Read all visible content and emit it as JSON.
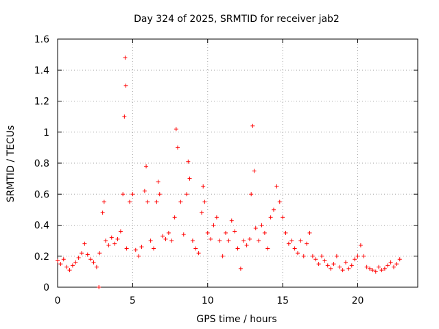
{
  "chart_data": {
    "type": "scatter",
    "title": "Day 324 of 2025, SRMTID for receiver jab2",
    "xlabel": "GPS time / hours",
    "ylabel": "SRMTID / TECUs",
    "xlim": [
      0,
      24
    ],
    "ylim": [
      0,
      1.6
    ],
    "xticks": [
      0,
      5,
      10,
      15,
      20
    ],
    "xtick_labels": [
      "0",
      "5",
      "10",
      "15",
      "20"
    ],
    "yticks": [
      0,
      0.2,
      0.4,
      0.6,
      0.8,
      1.0,
      1.2,
      1.4,
      1.6
    ],
    "ytick_labels": [
      "0",
      "0.2",
      "0.4",
      "0.6",
      "0.8",
      "1",
      "1.2",
      "1.4",
      "1.6"
    ],
    "grid": true,
    "marker": "+",
    "color": "#ff0000",
    "series": [
      {
        "name": "SRMTID",
        "x": [
          0.0,
          0.2,
          0.4,
          0.6,
          0.8,
          1.0,
          1.2,
          1.4,
          1.6,
          1.8,
          2.0,
          2.2,
          2.4,
          2.6,
          2.75,
          2.8,
          3.0,
          3.1,
          3.2,
          3.4,
          3.6,
          3.8,
          4.0,
          4.2,
          4.35,
          4.45,
          4.5,
          4.55,
          4.6,
          4.8,
          5.0,
          5.2,
          5.4,
          5.6,
          5.8,
          5.9,
          6.0,
          6.2,
          6.4,
          6.6,
          6.7,
          6.8,
          7.0,
          7.2,
          7.4,
          7.6,
          7.8,
          7.9,
          8.0,
          8.2,
          8.4,
          8.6,
          8.7,
          8.8,
          9.0,
          9.2,
          9.4,
          9.6,
          9.7,
          9.8,
          10.0,
          10.2,
          10.4,
          10.6,
          10.8,
          11.0,
          11.2,
          11.4,
          11.6,
          11.8,
          12.0,
          12.2,
          12.4,
          12.6,
          12.8,
          12.9,
          13.0,
          13.1,
          13.2,
          13.4,
          13.6,
          13.8,
          14.0,
          14.2,
          14.4,
          14.6,
          14.8,
          15.0,
          15.2,
          15.4,
          15.6,
          15.8,
          16.0,
          16.2,
          16.4,
          16.6,
          16.8,
          17.0,
          17.2,
          17.4,
          17.6,
          17.8,
          18.0,
          18.2,
          18.4,
          18.6,
          18.8,
          19.0,
          19.2,
          19.4,
          19.6,
          19.8,
          20.0,
          20.2,
          20.4,
          20.6,
          20.8,
          21.0,
          21.2,
          21.4,
          21.6,
          21.8,
          22.0,
          22.2,
          22.4,
          22.6,
          22.8
        ],
        "y": [
          0.17,
          0.15,
          0.18,
          0.13,
          0.11,
          0.14,
          0.16,
          0.19,
          0.22,
          0.28,
          0.21,
          0.18,
          0.16,
          0.13,
          0.0,
          0.22,
          0.48,
          0.55,
          0.3,
          0.27,
          0.32,
          0.28,
          0.31,
          0.36,
          0.6,
          1.1,
          1.48,
          1.3,
          0.25,
          0.55,
          0.6,
          0.24,
          0.2,
          0.26,
          0.62,
          0.78,
          0.55,
          0.3,
          0.25,
          0.55,
          0.68,
          0.6,
          0.33,
          0.31,
          0.35,
          0.3,
          0.45,
          1.02,
          0.9,
          0.55,
          0.34,
          0.6,
          0.81,
          0.7,
          0.3,
          0.25,
          0.22,
          0.48,
          0.65,
          0.55,
          0.35,
          0.31,
          0.4,
          0.45,
          0.3,
          0.2,
          0.35,
          0.3,
          0.43,
          0.36,
          0.25,
          0.12,
          0.3,
          0.27,
          0.31,
          0.6,
          1.04,
          0.75,
          0.38,
          0.3,
          0.4,
          0.35,
          0.25,
          0.45,
          0.5,
          0.65,
          0.55,
          0.45,
          0.35,
          0.28,
          0.3,
          0.25,
          0.22,
          0.3,
          0.2,
          0.28,
          0.35,
          0.2,
          0.18,
          0.15,
          0.2,
          0.17,
          0.14,
          0.12,
          0.15,
          0.2,
          0.13,
          0.11,
          0.16,
          0.12,
          0.14,
          0.18,
          0.2,
          0.27,
          0.2,
          0.13,
          0.12,
          0.11,
          0.1,
          0.13,
          0.11,
          0.12,
          0.14,
          0.16,
          0.13,
          0.15,
          0.18
        ]
      }
    ]
  }
}
